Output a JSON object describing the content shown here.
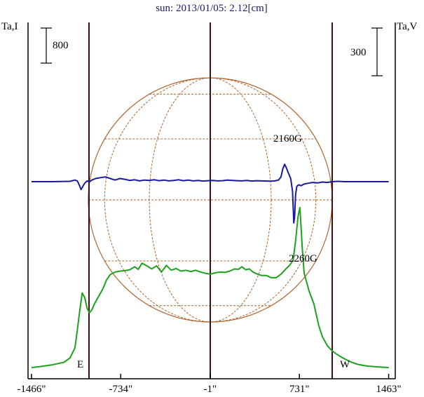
{
  "chart_data": {
    "type": "line",
    "title": "sun: 2013/01/05: 2.12[cm]",
    "left_axis_label": "Ta,I",
    "right_axis_label": "Ta,V",
    "left_scale_bar": "800",
    "right_scale_bar": "300",
    "x_ticks": [
      "-1466\"",
      "-734\"",
      "-1\"",
      "731\"",
      "1463\""
    ],
    "limb_labels": {
      "east": "E",
      "west": "W"
    },
    "annotations": [
      {
        "text": "2160G",
        "x": 590,
        "series": "Intensity (I)"
      },
      {
        "text": "2260G",
        "x": 690,
        "series": "Polarization (V)"
      }
    ],
    "grid": true,
    "xlim": [
      -1466,
      1463
    ],
    "series": [
      {
        "color": "#1fa01f",
        "x": [
          -1466,
          -1400,
          -1300,
          -1200,
          -1150,
          -1110,
          -1090,
          -1070,
          -1050,
          -1030,
          -1010,
          -990,
          -970,
          -950,
          -920,
          -880,
          -850,
          -820,
          -780,
          -740,
          -700,
          -660,
          -620,
          -590,
          -560,
          -520,
          -480,
          -440,
          -400,
          -360,
          -320,
          -280,
          -240,
          -200,
          -160,
          -120,
          -80,
          -40,
          0,
          40,
          80,
          120,
          160,
          200,
          230,
          260,
          290,
          320,
          350,
          380,
          420,
          460,
          500,
          540,
          580,
          620,
          650,
          680,
          700,
          720,
          735,
          745,
          755,
          770,
          790,
          810,
          830,
          850,
          870,
          890,
          920,
          960,
          1000,
          1040,
          1080,
          1120,
          1160,
          1200,
          1250,
          1300,
          1350,
          1400,
          1463
        ],
        "y": [
          0,
          20,
          60,
          120,
          220,
          450,
          850,
          1300,
          1700,
          1600,
          1350,
          1250,
          1320,
          1450,
          1600,
          1800,
          2000,
          2120,
          2180,
          2200,
          2210,
          2230,
          2300,
          2240,
          2380,
          2320,
          2250,
          2320,
          2180,
          2330,
          2220,
          2260,
          2200,
          2220,
          2190,
          2220,
          2180,
          2150,
          2130,
          2160,
          2180,
          2170,
          2200,
          2250,
          2240,
          2300,
          2230,
          2250,
          2180,
          2140,
          2100,
          2100,
          2050,
          2050,
          2130,
          2250,
          2330,
          2450,
          2900,
          3450,
          3650,
          3200,
          2700,
          2150,
          1950,
          1750,
          1600,
          1450,
          1200,
          950,
          700,
          500,
          380,
          300,
          230,
          170,
          120,
          80,
          50,
          30,
          20,
          10,
          0
        ]
      },
      {
        "color": "#1a1aa0",
        "x": [
          -1466,
          -1300,
          -1150,
          -1110,
          -1090,
          -1075,
          -1060,
          -1045,
          -1030,
          -1010,
          -990,
          -970,
          -940,
          -900,
          -860,
          -820,
          -780,
          -740,
          -700,
          -660,
          -620,
          -580,
          -540,
          -500,
          -460,
          -420,
          -380,
          -340,
          -300,
          -260,
          -220,
          -180,
          -140,
          -100,
          -60,
          -20,
          20,
          60,
          100,
          140,
          180,
          220,
          260,
          300,
          340,
          380,
          420,
          460,
          500,
          530,
          560,
          580,
          595,
          610,
          625,
          640,
          660,
          675,
          685,
          692,
          700,
          710,
          725,
          745,
          770,
          800,
          840,
          880,
          920,
          960,
          1000,
          1050,
          1100,
          1200,
          1300,
          1463
        ],
        "y": [
          0,
          0,
          2,
          10,
          5,
          -20,
          -50,
          -30,
          -10,
          5,
          0,
          10,
          20,
          25,
          30,
          20,
          10,
          20,
          15,
          8,
          12,
          5,
          10,
          8,
          12,
          6,
          10,
          5,
          8,
          12,
          6,
          10,
          5,
          8,
          4,
          6,
          8,
          5,
          6,
          10,
          8,
          6,
          5,
          8,
          4,
          6,
          5,
          4,
          3,
          5,
          10,
          30,
          80,
          110,
          85,
          55,
          20,
          -60,
          -260,
          -220,
          -80,
          -30,
          -20,
          -25,
          -15,
          -10,
          -5,
          -8,
          -2,
          -5,
          0,
          2,
          0,
          0,
          0,
          0
        ]
      }
    ]
  }
}
